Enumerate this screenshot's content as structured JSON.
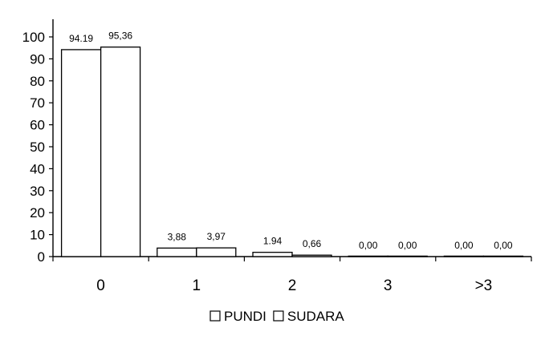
{
  "chart_data": {
    "type": "bar",
    "categories": [
      "0",
      "1",
      "2",
      "3",
      ">3"
    ],
    "series": [
      {
        "name": "PUNDI",
        "values": [
          94.19,
          3.88,
          1.94,
          0.0,
          0.0
        ],
        "labels": [
          "94.19",
          "3,88",
          "1.94",
          "0,00",
          "0,00"
        ]
      },
      {
        "name": "SUDARA",
        "values": [
          95.36,
          3.97,
          0.66,
          0.0,
          0.0
        ],
        "labels": [
          "95,36",
          "3,97",
          "0,66",
          "0,00",
          "0,00"
        ]
      }
    ],
    "yticks": [
      "0",
      "10",
      "20",
      "30",
      "40",
      "50",
      "60",
      "70",
      "80",
      "90",
      "100"
    ],
    "ylim": [
      0,
      100
    ],
    "grid": false,
    "legend": "bottom",
    "colors": {
      "bar_fill": "#ffffff",
      "bar_stroke": "#000000",
      "axis": "#000000"
    }
  }
}
